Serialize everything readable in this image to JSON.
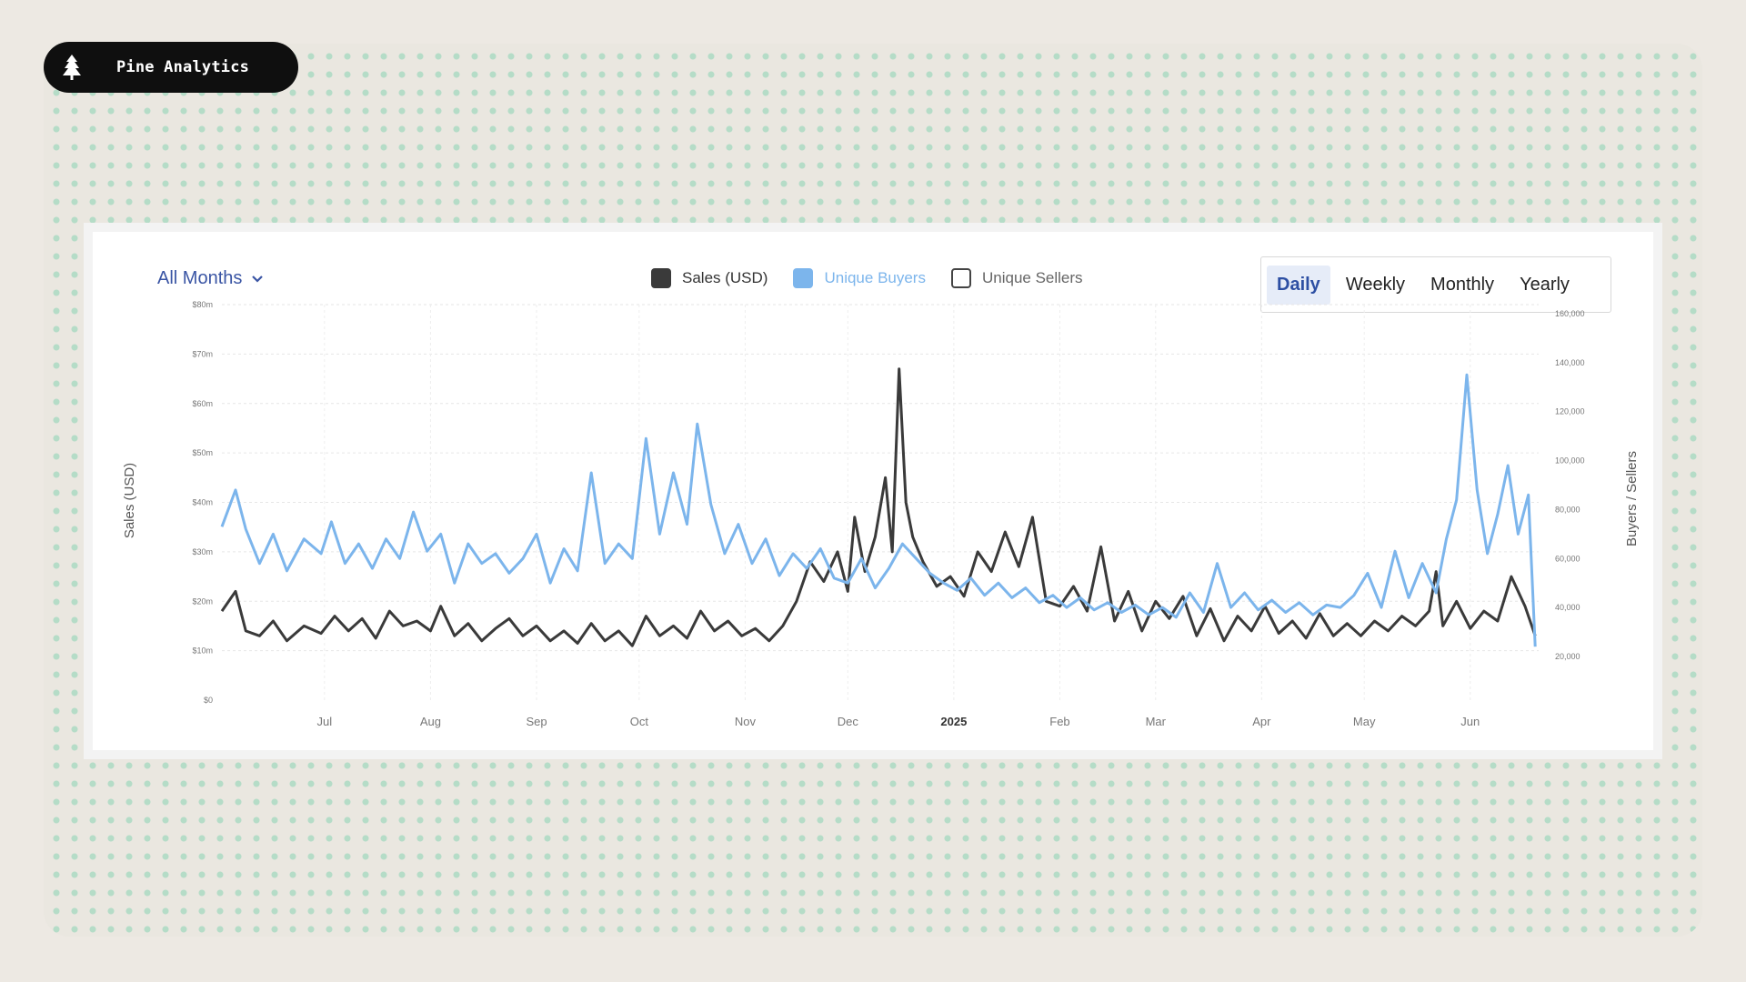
{
  "brand": {
    "name": "Pine Analytics",
    "icon": "pine-tree-icon"
  },
  "filter": {
    "selected": "All Months",
    "icon": "chevron-down-icon"
  },
  "legend": [
    {
      "label": "Sales (USD)",
      "color": "#3a3a3a",
      "checked": true
    },
    {
      "label": "Unique Buyers",
      "color": "#7cb5ec",
      "checked": true
    },
    {
      "label": "Unique Sellers",
      "color": "#ffffff",
      "checked": false
    }
  ],
  "tabs": [
    "Daily",
    "Weekly",
    "Monthly",
    "Yearly"
  ],
  "active_tab": "Daily",
  "colors": {
    "accent": "#2d4fa3",
    "sales": "#3a3a3a",
    "buyers": "#7cb5ec",
    "sellers": "#ffffff"
  },
  "chart_data": {
    "type": "line",
    "ylabel": "Sales (USD)",
    "y2label": "Buyers / Sellers",
    "ylim": [
      0,
      80000000
    ],
    "y2lim": [
      20000,
      160000
    ],
    "yticks": [
      "$0",
      "$10m",
      "$20m",
      "$30m",
      "$40m",
      "$50m",
      "$60m",
      "$70m",
      "$80m"
    ],
    "y2ticks": [
      "20,000",
      "40,000",
      "60,000",
      "80,000",
      "100,000",
      "120,000",
      "140,000",
      "160,000"
    ],
    "xticks": [
      {
        "label": "Jul",
        "date": "2024-07-01",
        "bold": false
      },
      {
        "label": "Aug",
        "date": "2024-08-01",
        "bold": false
      },
      {
        "label": "Sep",
        "date": "2024-09-01",
        "bold": false
      },
      {
        "label": "Oct",
        "date": "2024-10-01",
        "bold": false
      },
      {
        "label": "Nov",
        "date": "2024-11-01",
        "bold": false
      },
      {
        "label": "Dec",
        "date": "2024-12-01",
        "bold": false
      },
      {
        "label": "2025",
        "date": "2025-01-01",
        "bold": true
      },
      {
        "label": "Feb",
        "date": "2025-02-01",
        "bold": false
      },
      {
        "label": "Mar",
        "date": "2025-03-01",
        "bold": false
      },
      {
        "label": "Apr",
        "date": "2025-04-01",
        "bold": false
      },
      {
        "label": "May",
        "date": "2025-05-01",
        "bold": false
      },
      {
        "label": "Jun",
        "date": "2025-06-01",
        "bold": false
      }
    ],
    "grid": true,
    "legend_position": "top",
    "series": [
      {
        "name": "Sales (USD)",
        "axis": "left",
        "color": "#3a3a3a",
        "points": [
          [
            "2024-06-01",
            18000000
          ],
          [
            "2024-06-05",
            22000000
          ],
          [
            "2024-06-08",
            14000000
          ],
          [
            "2024-06-12",
            13000000
          ],
          [
            "2024-06-16",
            16000000
          ],
          [
            "2024-06-20",
            12000000
          ],
          [
            "2024-06-25",
            15000000
          ],
          [
            "2024-06-30",
            13500000
          ],
          [
            "2024-07-04",
            17000000
          ],
          [
            "2024-07-08",
            14000000
          ],
          [
            "2024-07-12",
            16500000
          ],
          [
            "2024-07-16",
            12500000
          ],
          [
            "2024-07-20",
            18000000
          ],
          [
            "2024-07-24",
            15000000
          ],
          [
            "2024-07-28",
            16000000
          ],
          [
            "2024-08-01",
            14000000
          ],
          [
            "2024-08-04",
            19000000
          ],
          [
            "2024-08-08",
            13000000
          ],
          [
            "2024-08-12",
            15500000
          ],
          [
            "2024-08-16",
            12000000
          ],
          [
            "2024-08-20",
            14500000
          ],
          [
            "2024-08-24",
            16500000
          ],
          [
            "2024-08-28",
            13000000
          ],
          [
            "2024-09-01",
            15000000
          ],
          [
            "2024-09-05",
            12000000
          ],
          [
            "2024-09-09",
            14000000
          ],
          [
            "2024-09-13",
            11500000
          ],
          [
            "2024-09-17",
            15500000
          ],
          [
            "2024-09-21",
            12000000
          ],
          [
            "2024-09-25",
            14000000
          ],
          [
            "2024-09-29",
            11000000
          ],
          [
            "2024-10-03",
            17000000
          ],
          [
            "2024-10-07",
            13000000
          ],
          [
            "2024-10-11",
            15000000
          ],
          [
            "2024-10-15",
            12500000
          ],
          [
            "2024-10-19",
            18000000
          ],
          [
            "2024-10-23",
            14000000
          ],
          [
            "2024-10-27",
            16000000
          ],
          [
            "2024-10-31",
            13000000
          ],
          [
            "2024-11-04",
            14500000
          ],
          [
            "2024-11-08",
            12000000
          ],
          [
            "2024-11-12",
            15000000
          ],
          [
            "2024-11-16",
            20000000
          ],
          [
            "2024-11-20",
            28000000
          ],
          [
            "2024-11-24",
            24000000
          ],
          [
            "2024-11-28",
            30000000
          ],
          [
            "2024-12-01",
            22000000
          ],
          [
            "2024-12-03",
            37000000
          ],
          [
            "2024-12-06",
            26000000
          ],
          [
            "2024-12-09",
            33000000
          ],
          [
            "2024-12-12",
            45000000
          ],
          [
            "2024-12-14",
            30000000
          ],
          [
            "2024-12-16",
            67000000
          ],
          [
            "2024-12-18",
            40000000
          ],
          [
            "2024-12-20",
            33000000
          ],
          [
            "2024-12-23",
            28000000
          ],
          [
            "2024-12-27",
            23000000
          ],
          [
            "2024-12-31",
            25000000
          ],
          [
            "2025-01-04",
            21000000
          ],
          [
            "2025-01-08",
            30000000
          ],
          [
            "2025-01-12",
            26000000
          ],
          [
            "2025-01-16",
            34000000
          ],
          [
            "2025-01-20",
            27000000
          ],
          [
            "2025-01-24",
            37000000
          ],
          [
            "2025-01-28",
            20000000
          ],
          [
            "2025-02-01",
            19000000
          ],
          [
            "2025-02-05",
            23000000
          ],
          [
            "2025-02-09",
            18000000
          ],
          [
            "2025-02-13",
            31000000
          ],
          [
            "2025-02-17",
            16000000
          ],
          [
            "2025-02-21",
            22000000
          ],
          [
            "2025-02-25",
            14000000
          ],
          [
            "2025-03-01",
            20000000
          ],
          [
            "2025-03-05",
            16500000
          ],
          [
            "2025-03-09",
            21000000
          ],
          [
            "2025-03-13",
            13000000
          ],
          [
            "2025-03-17",
            18500000
          ],
          [
            "2025-03-21",
            12000000
          ],
          [
            "2025-03-25",
            17000000
          ],
          [
            "2025-03-29",
            14000000
          ],
          [
            "2025-04-02",
            19000000
          ],
          [
            "2025-04-06",
            13500000
          ],
          [
            "2025-04-10",
            16000000
          ],
          [
            "2025-04-14",
            12500000
          ],
          [
            "2025-04-18",
            17500000
          ],
          [
            "2025-04-22",
            13000000
          ],
          [
            "2025-04-26",
            15500000
          ],
          [
            "2025-04-30",
            13000000
          ],
          [
            "2025-05-04",
            16000000
          ],
          [
            "2025-05-08",
            14000000
          ],
          [
            "2025-05-12",
            17000000
          ],
          [
            "2025-05-16",
            15000000
          ],
          [
            "2025-05-20",
            18000000
          ],
          [
            "2025-05-22",
            26000000
          ],
          [
            "2025-05-24",
            15000000
          ],
          [
            "2025-05-28",
            20000000
          ],
          [
            "2025-06-01",
            14500000
          ],
          [
            "2025-06-05",
            18000000
          ],
          [
            "2025-06-09",
            16000000
          ],
          [
            "2025-06-13",
            25000000
          ],
          [
            "2025-06-17",
            19000000
          ],
          [
            "2025-06-20",
            13000000
          ]
        ]
      },
      {
        "name": "Unique Buyers",
        "axis": "right",
        "color": "#7cb5ec",
        "points": [
          [
            "2024-06-01",
            73000
          ],
          [
            "2024-06-05",
            88000
          ],
          [
            "2024-06-08",
            72000
          ],
          [
            "2024-06-12",
            58000
          ],
          [
            "2024-06-16",
            70000
          ],
          [
            "2024-06-20",
            55000
          ],
          [
            "2024-06-25",
            68000
          ],
          [
            "2024-06-30",
            62000
          ],
          [
            "2024-07-03",
            75000
          ],
          [
            "2024-07-07",
            58000
          ],
          [
            "2024-07-11",
            66000
          ],
          [
            "2024-07-15",
            56000
          ],
          [
            "2024-07-19",
            68000
          ],
          [
            "2024-07-23",
            60000
          ],
          [
            "2024-07-27",
            79000
          ],
          [
            "2024-07-31",
            63000
          ],
          [
            "2024-08-04",
            70000
          ],
          [
            "2024-08-08",
            50000
          ],
          [
            "2024-08-12",
            66000
          ],
          [
            "2024-08-16",
            58000
          ],
          [
            "2024-08-20",
            62000
          ],
          [
            "2024-08-24",
            54000
          ],
          [
            "2024-08-28",
            60000
          ],
          [
            "2024-09-01",
            70000
          ],
          [
            "2024-09-05",
            50000
          ],
          [
            "2024-09-09",
            64000
          ],
          [
            "2024-09-13",
            55000
          ],
          [
            "2024-09-17",
            95000
          ],
          [
            "2024-09-21",
            58000
          ],
          [
            "2024-09-25",
            66000
          ],
          [
            "2024-09-29",
            60000
          ],
          [
            "2024-10-03",
            109000
          ],
          [
            "2024-10-07",
            70000
          ],
          [
            "2024-10-11",
            95000
          ],
          [
            "2024-10-15",
            74000
          ],
          [
            "2024-10-18",
            115000
          ],
          [
            "2024-10-22",
            82000
          ],
          [
            "2024-10-26",
            62000
          ],
          [
            "2024-10-30",
            74000
          ],
          [
            "2024-11-03",
            58000
          ],
          [
            "2024-11-07",
            68000
          ],
          [
            "2024-11-11",
            53000
          ],
          [
            "2024-11-15",
            62000
          ],
          [
            "2024-11-19",
            56000
          ],
          [
            "2024-11-23",
            64000
          ],
          [
            "2024-11-27",
            52000
          ],
          [
            "2024-12-01",
            50000
          ],
          [
            "2024-12-05",
            60000
          ],
          [
            "2024-12-09",
            48000
          ],
          [
            "2024-12-13",
            56000
          ],
          [
            "2024-12-17",
            66000
          ],
          [
            "2024-12-21",
            60000
          ],
          [
            "2024-12-25",
            54000
          ],
          [
            "2024-12-29",
            50000
          ],
          [
            "2025-01-02",
            47000
          ],
          [
            "2025-01-06",
            52000
          ],
          [
            "2025-01-10",
            45000
          ],
          [
            "2025-01-14",
            50000
          ],
          [
            "2025-01-18",
            44000
          ],
          [
            "2025-01-22",
            48000
          ],
          [
            "2025-01-26",
            42000
          ],
          [
            "2025-01-30",
            45000
          ],
          [
            "2025-02-03",
            40000
          ],
          [
            "2025-02-07",
            44000
          ],
          [
            "2025-02-11",
            39000
          ],
          [
            "2025-02-15",
            42000
          ],
          [
            "2025-02-19",
            38000
          ],
          [
            "2025-02-23",
            41000
          ],
          [
            "2025-02-27",
            37000
          ],
          [
            "2025-03-03",
            40000
          ],
          [
            "2025-03-07",
            36000
          ],
          [
            "2025-03-11",
            46000
          ],
          [
            "2025-03-15",
            38000
          ],
          [
            "2025-03-19",
            58000
          ],
          [
            "2025-03-23",
            40000
          ],
          [
            "2025-03-27",
            46000
          ],
          [
            "2025-03-31",
            39000
          ],
          [
            "2025-04-04",
            43000
          ],
          [
            "2025-04-08",
            38000
          ],
          [
            "2025-04-12",
            42000
          ],
          [
            "2025-04-16",
            37000
          ],
          [
            "2025-04-20",
            41000
          ],
          [
            "2025-04-24",
            40000
          ],
          [
            "2025-04-28",
            45000
          ],
          [
            "2025-05-02",
            54000
          ],
          [
            "2025-05-06",
            40000
          ],
          [
            "2025-05-10",
            63000
          ],
          [
            "2025-05-14",
            44000
          ],
          [
            "2025-05-18",
            58000
          ],
          [
            "2025-05-22",
            46000
          ],
          [
            "2025-05-25",
            68000
          ],
          [
            "2025-05-28",
            84000
          ],
          [
            "2025-05-31",
            135000
          ],
          [
            "2025-06-03",
            88000
          ],
          [
            "2025-06-06",
            62000
          ],
          [
            "2025-06-09",
            78000
          ],
          [
            "2025-06-12",
            98000
          ],
          [
            "2025-06-15",
            70000
          ],
          [
            "2025-06-18",
            86000
          ],
          [
            "2025-06-20",
            24000
          ]
        ]
      }
    ]
  }
}
